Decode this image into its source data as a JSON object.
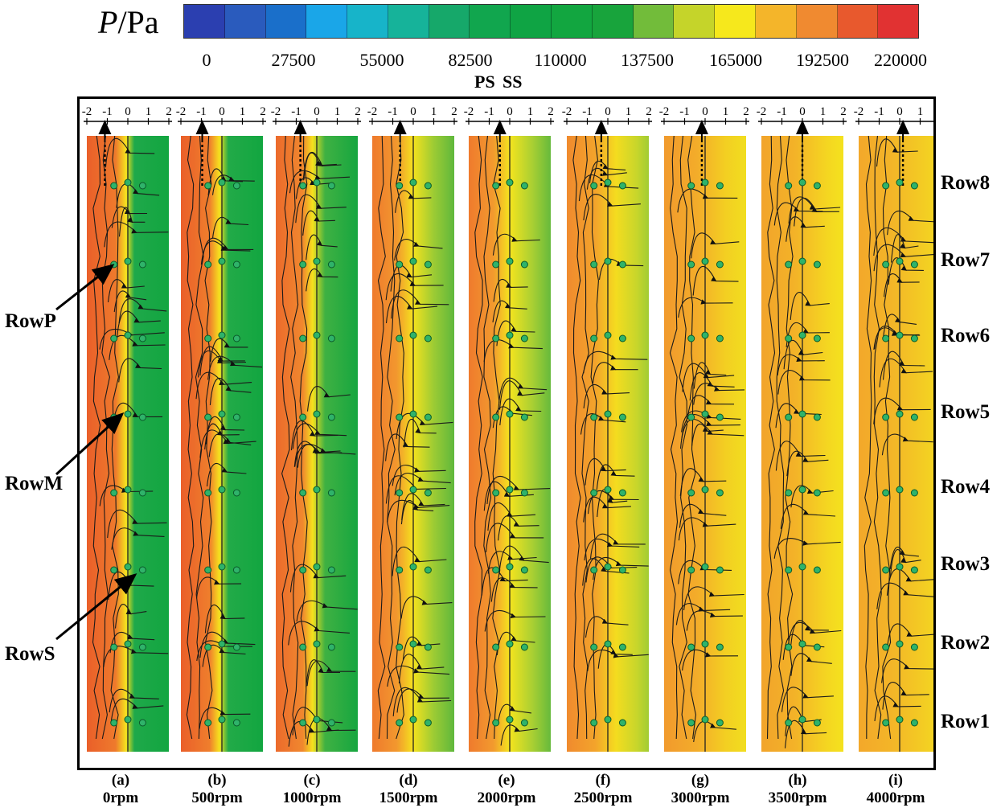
{
  "legend": {
    "symbol": "P",
    "unit": "/Pa",
    "colors": [
      "#2b3fb0",
      "#2a5bbd",
      "#1a6fca",
      "#1aa6e8",
      "#17b4c9",
      "#16b39a",
      "#16a86a",
      "#11a64e",
      "#0fa444",
      "#12a640",
      "#18a43c",
      "#72bc3a",
      "#c5d42a",
      "#f6e81c",
      "#f4b52a",
      "#f08a30",
      "#e8592d",
      "#e13232"
    ],
    "ticks": [
      "0",
      "27500",
      "55000",
      "82500",
      "110000",
      "137500",
      "165000",
      "192500",
      "220000"
    ]
  },
  "side_labels": {
    "ps": "PS",
    "ss": "SS"
  },
  "axis_ticks": [
    "-2",
    "-1",
    "0",
    "1",
    "2"
  ],
  "panels": [
    {
      "letter": "(a)",
      "speed": "0rpm"
    },
    {
      "letter": "(b)",
      "speed": "500rpm"
    },
    {
      "letter": "(c)",
      "speed": "1000rpm"
    },
    {
      "letter": "(d)",
      "speed": "1500rpm"
    },
    {
      "letter": "(e)",
      "speed": "2000rpm"
    },
    {
      "letter": "(f)",
      "speed": "2500rpm"
    },
    {
      "letter": "(g)",
      "speed": "3000rpm"
    },
    {
      "letter": "(h)",
      "speed": "3500rpm"
    },
    {
      "letter": "(i)",
      "speed": "4000rpm"
    }
  ],
  "rows": [
    "Row8",
    "Row7",
    "Row6",
    "Row5",
    "Row4",
    "Row3",
    "Row2",
    "Row1"
  ],
  "hole_rows": [
    "RowP",
    "RowM",
    "RowS"
  ]
}
